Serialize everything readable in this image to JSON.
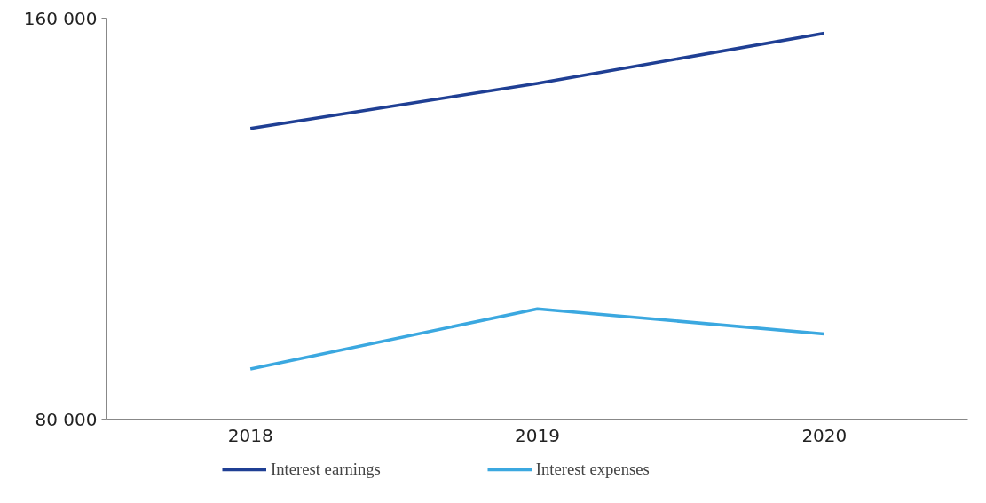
{
  "chart_data": {
    "type": "line",
    "categories": [
      "2018",
      "2019",
      "2020"
    ],
    "series": [
      {
        "name": "Interest earnings",
        "color": "#1f3f94",
        "values": [
          138000,
          147000,
          157000
        ]
      },
      {
        "name": "Interest expenses",
        "color": "#3ba8e0",
        "values": [
          90000,
          102000,
          97000
        ]
      }
    ],
    "ylim": [
      80000,
      160000
    ],
    "yticks": [
      {
        "value": 80000,
        "label": "80 000"
      },
      {
        "value": 160000,
        "label": "160 000"
      }
    ],
    "grid": false,
    "legend": "bottom",
    "marker": "none",
    "line_style": "solid"
  }
}
